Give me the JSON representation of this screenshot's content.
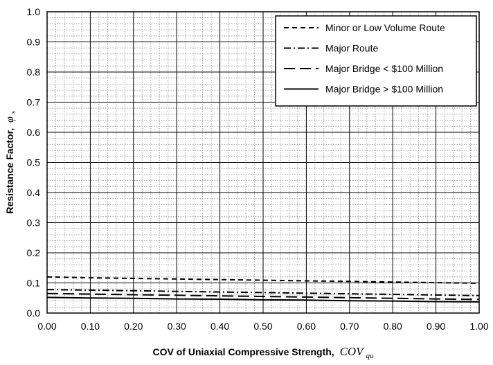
{
  "chart_data": {
    "type": "line",
    "title": "",
    "xlabel": "COV of Uniaxial Compressive Strength,",
    "xlabel_symbol": "COV",
    "xlabel_subscript": "qu",
    "ylabel": "Resistance Factor,",
    "ylabel_symbol": "φ",
    "ylabel_subscript": "s",
    "xlim": [
      0.0,
      1.0
    ],
    "ylim": [
      0.0,
      1.0
    ],
    "x_ticks": [
      "0.00",
      "0.10",
      "0.20",
      "0.30",
      "0.40",
      "0.50",
      "0.60",
      "0.70",
      "0.80",
      "0.90",
      "1.00"
    ],
    "y_ticks": [
      "0.0",
      "0.1",
      "0.2",
      "0.3",
      "0.4",
      "0.5",
      "0.6",
      "0.7",
      "0.8",
      "0.9",
      "1.0"
    ],
    "grid": true,
    "minor_grid": true,
    "legend_position": "top-right",
    "x": [
      0.0,
      0.1,
      0.2,
      0.3,
      0.4,
      0.5,
      0.6,
      0.7,
      0.8,
      0.9,
      1.0
    ],
    "series": [
      {
        "name": "Minor or Low Volume Route",
        "style": "dashed",
        "values": [
          0.12,
          0.117,
          0.115,
          0.113,
          0.111,
          0.109,
          0.107,
          0.105,
          0.103,
          0.101,
          0.099
        ]
      },
      {
        "name": "Major Route",
        "style": "dashdot",
        "values": [
          0.078,
          0.076,
          0.074,
          0.072,
          0.07,
          0.068,
          0.066,
          0.064,
          0.062,
          0.06,
          0.058
        ]
      },
      {
        "name": "Major Bridge < $100 Million",
        "style": "longdash",
        "values": [
          0.065,
          0.063,
          0.061,
          0.059,
          0.057,
          0.055,
          0.053,
          0.051,
          0.049,
          0.047,
          0.045
        ]
      },
      {
        "name": "Major Bridge > $100 Million",
        "style": "solid",
        "values": [
          0.052,
          0.05,
          0.049,
          0.047,
          0.046,
          0.044,
          0.043,
          0.041,
          0.04,
          0.038,
          0.037
        ]
      }
    ]
  }
}
